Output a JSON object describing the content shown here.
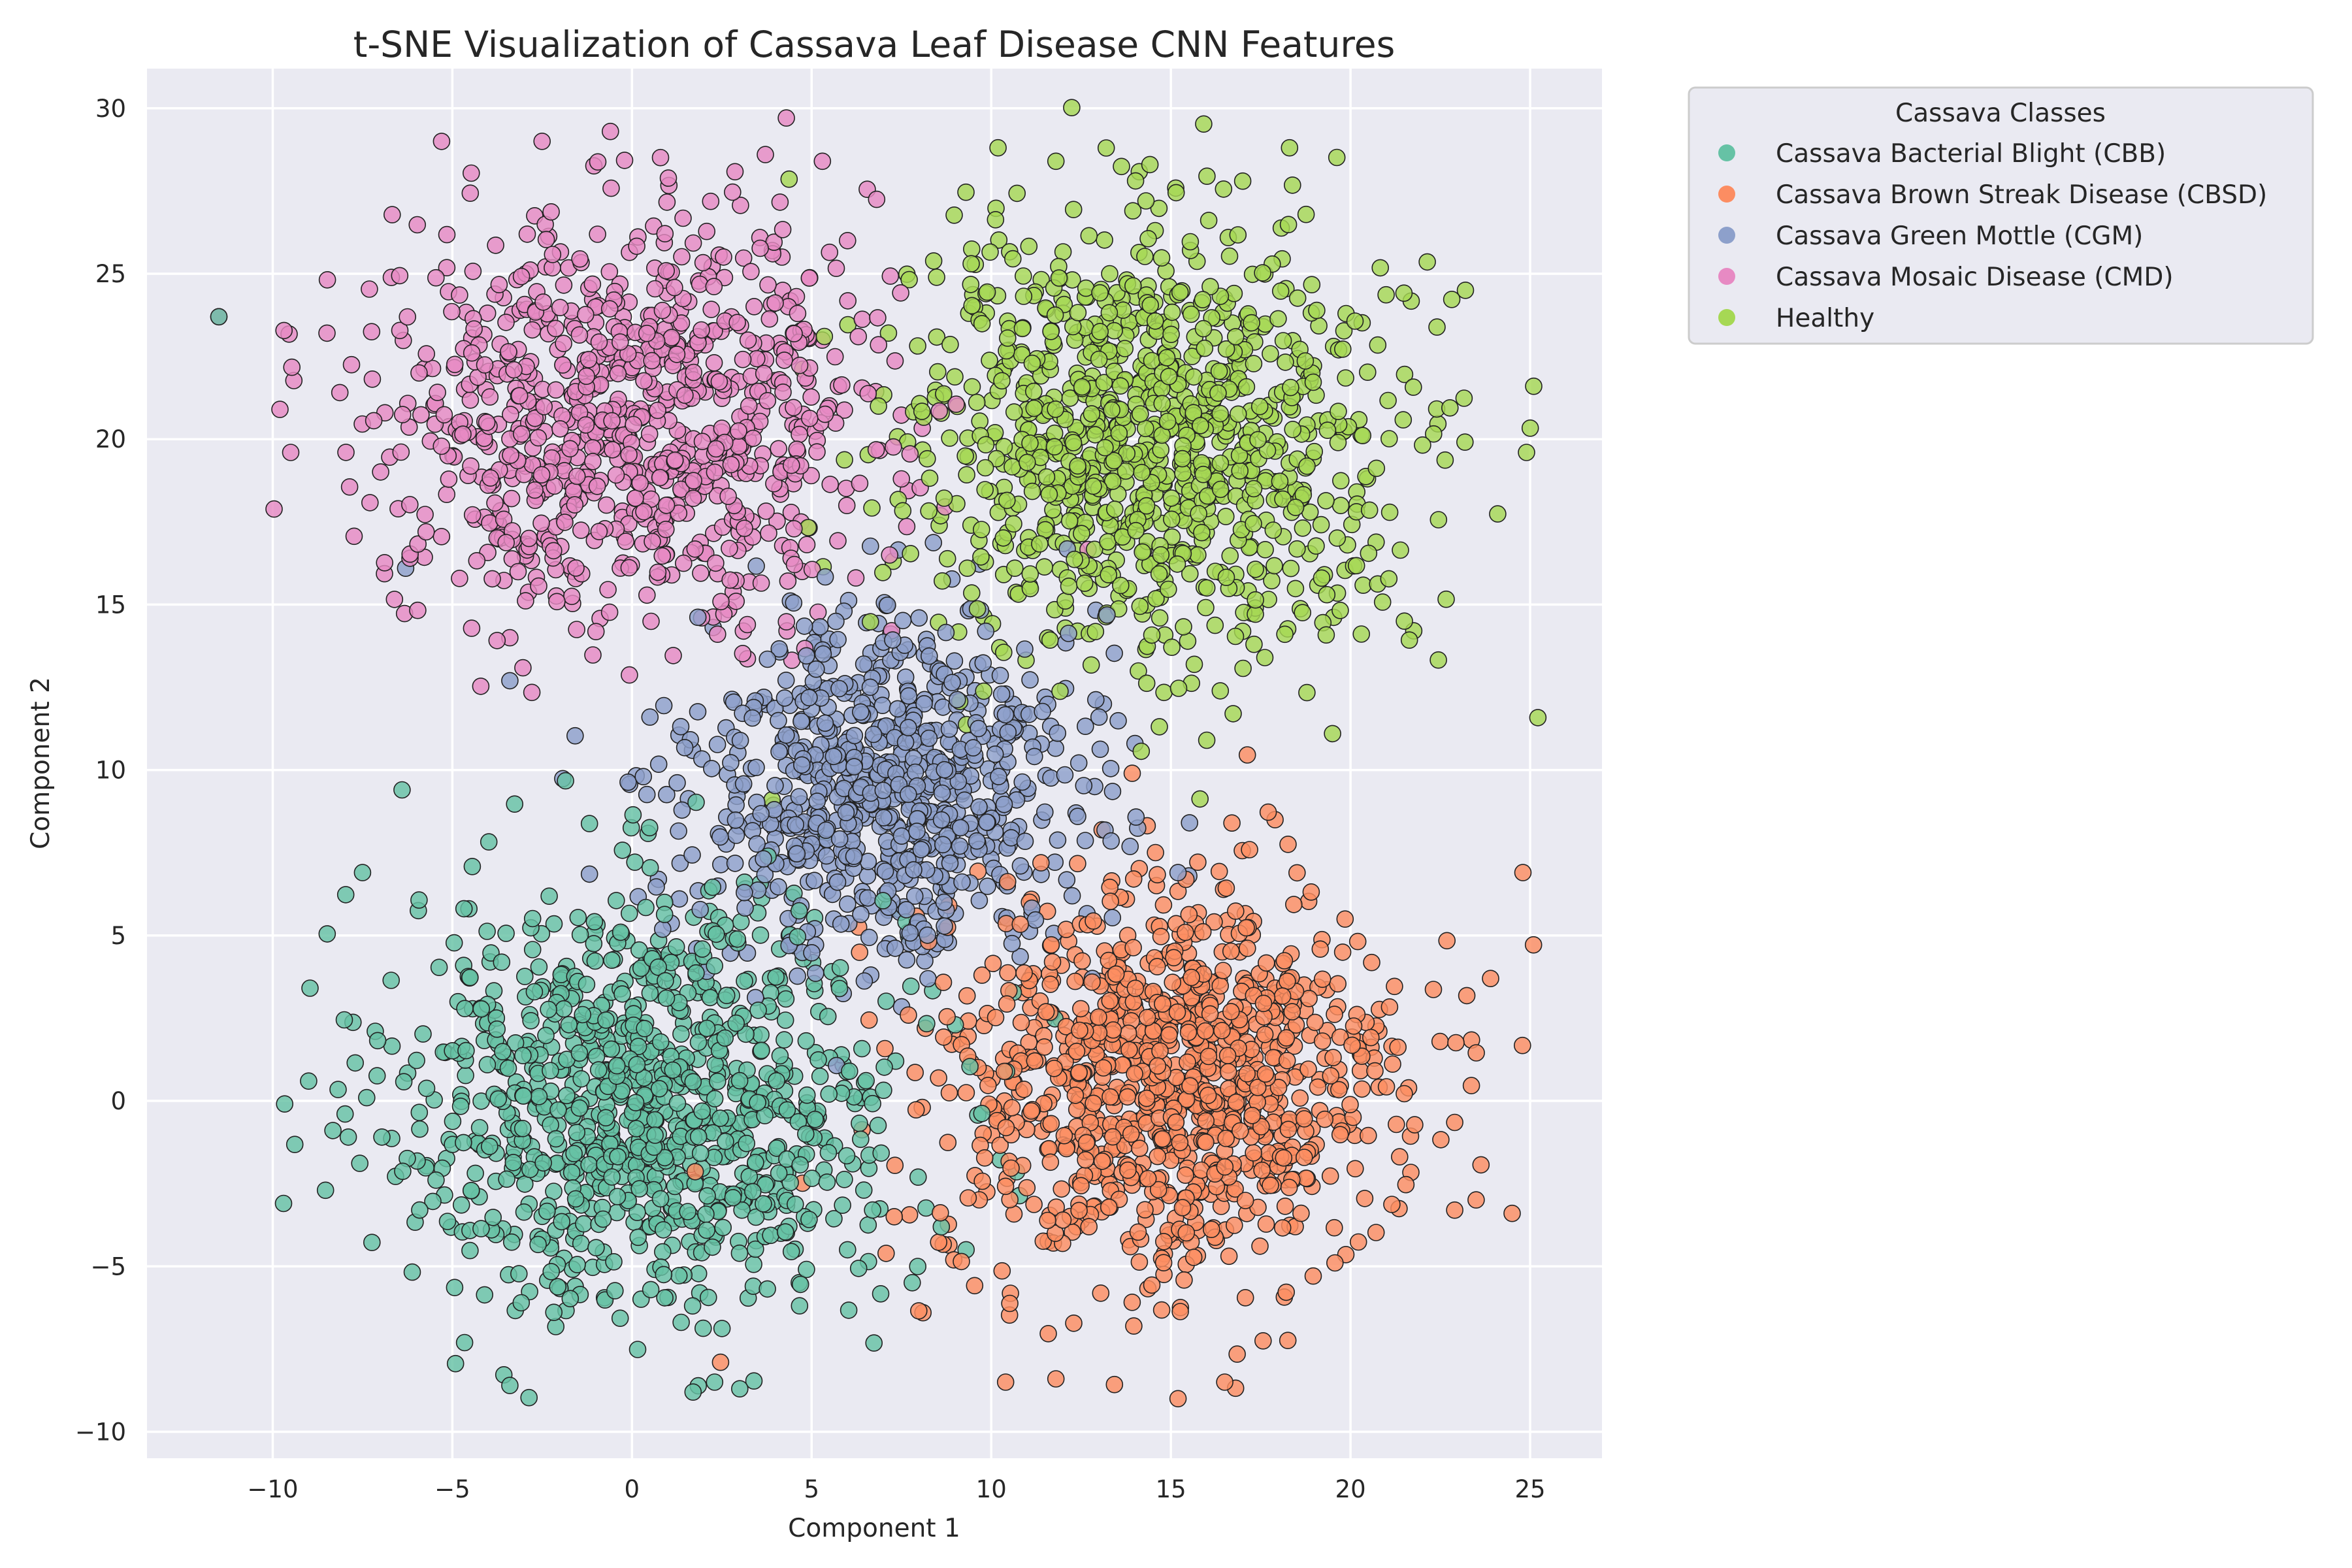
{
  "chart_data": {
    "type": "scatter",
    "title": "t-SNE Visualization of Cassava Leaf Disease CNN Features",
    "xlabel": "Component 1",
    "ylabel": "Component 2",
    "xlim": [
      -13.5,
      27
    ],
    "ylim": [
      -10.8,
      31.2
    ],
    "x_ticks": [
      -10,
      -5,
      0,
      5,
      10,
      15,
      20,
      25
    ],
    "y_ticks": [
      -10,
      -5,
      0,
      5,
      10,
      15,
      20,
      25,
      30
    ],
    "grid": true,
    "legend": {
      "title": "Cassava Classes",
      "placement": "outside-top-right"
    },
    "series": [
      {
        "name": "Cassava Bacterial Blight (CBB)",
        "color": "#66c2a5",
        "center": [
          0.5,
          0.0
        ],
        "spread": [
          3.5,
          3.2
        ],
        "count": 1000,
        "sample_points": [
          [
            -11.5,
            23.7
          ],
          [
            -9.7,
            -3.1
          ],
          [
            -9.0,
            0.6
          ],
          [
            -7.5,
            6.9
          ],
          [
            -6.4,
            9.4
          ],
          [
            -3.4,
            -8.6
          ],
          [
            1.7,
            -8.8
          ],
          [
            2.3,
            -8.5
          ],
          [
            3.0,
            -8.7
          ],
          [
            4.8,
            -3.5
          ],
          [
            5.2,
            2.7
          ],
          [
            6.0,
            -4.5
          ],
          [
            9.3,
            -4.5
          ],
          [
            9.0,
            2.3
          ]
        ]
      },
      {
        "name": "Cassava Brown Streak Disease (CBSD)",
        "color": "#fc8d62",
        "center": [
          15.0,
          0.5
        ],
        "spread": [
          3.2,
          3.0
        ],
        "count": 1000,
        "sample_points": [
          [
            24.8,
            6.9
          ],
          [
            24.5,
            -3.4
          ],
          [
            23.9,
            3.7
          ],
          [
            22.9,
            -3.3
          ],
          [
            15.2,
            -9.0
          ],
          [
            16.5,
            -8.5
          ],
          [
            10.4,
            -8.5
          ],
          [
            11.8,
            -8.4
          ],
          [
            7.3,
            -3.5
          ],
          [
            8.1,
            -6.4
          ],
          [
            17.9,
            8.5
          ],
          [
            16.7,
            8.4
          ]
        ]
      },
      {
        "name": "Cassava Green Mottle (CGM)",
        "color": "#8da0cb",
        "center": [
          7.0,
          9.5
        ],
        "spread": [
          2.7,
          2.6
        ],
        "count": 800,
        "sample_points": [
          [
            -6.3,
            16.1
          ],
          [
            -3.4,
            12.7
          ],
          [
            0.5,
            11.6
          ],
          [
            1.8,
            4.6
          ],
          [
            5.9,
            14.8
          ],
          [
            11.5,
            12.2
          ],
          [
            13.0,
            11.6
          ],
          [
            14.0,
            10.8
          ],
          [
            15.2,
            6.9
          ],
          [
            15.5,
            6.8
          ]
        ]
      },
      {
        "name": "Cassava Mosaic Disease (CMD)",
        "color": "#e78ac3",
        "center": [
          0.0,
          20.7
        ],
        "spread": [
          3.4,
          3.0
        ],
        "count": 900,
        "sample_points": [
          [
            -11.5,
            23.7
          ],
          [
            -9.8,
            20.9
          ],
          [
            -9.5,
            19.6
          ],
          [
            -5.3,
            29.0
          ],
          [
            -0.6,
            29.3
          ],
          [
            5.3,
            28.4
          ],
          [
            6.0,
            26.0
          ],
          [
            -3.4,
            14.0
          ],
          [
            3.1,
            14.2
          ],
          [
            7.5,
            18.8
          ]
        ]
      },
      {
        "name": "Healthy",
        "color": "#a6d854",
        "center": [
          14.5,
          20.0
        ],
        "spread": [
          3.4,
          3.2
        ],
        "count": 1000,
        "sample_points": [
          [
            13.2,
            28.8
          ],
          [
            11.8,
            28.4
          ],
          [
            17.0,
            27.8
          ],
          [
            25.1,
            21.6
          ],
          [
            24.9,
            19.6
          ],
          [
            23.2,
            24.5
          ],
          [
            21.5,
            14.5
          ],
          [
            19.5,
            11.1
          ],
          [
            16.0,
            10.9
          ],
          [
            3.9,
            9.1
          ]
        ]
      }
    ]
  }
}
